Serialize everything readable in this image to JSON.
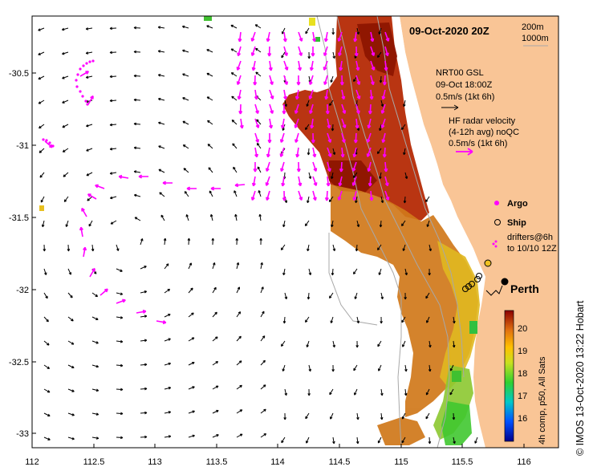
{
  "title": "09-Oct-2020 20Z",
  "isobaths": [
    "200m",
    "1000m"
  ],
  "model": {
    "line1": "NRT00 GSL",
    "line2": "09-Oct 18:00Z",
    "line3": "0.5m/s (1kt 6h)"
  },
  "radar": {
    "line1": "HF radar velocity",
    "line2": "(4-12h avg) noQC",
    "line3": "0.5m/s (1kt 6h)"
  },
  "legend": {
    "argo": "Argo",
    "ship": "Ship",
    "drifters_line1": "drifters@6h",
    "drifters_line2": "to 10/10 12Z"
  },
  "city": "Perth",
  "colorbar": {
    "ticks": [
      "20",
      "19",
      "18",
      "17",
      "16"
    ],
    "label": "4h comp, p50, All Sats"
  },
  "credit": "© IMOS 13-Oct-2020 13:22 Hobart",
  "axes": {
    "y_ticks": [
      "-30.5",
      "-31",
      "-31.5",
      "-32",
      "-32.5",
      "-33"
    ],
    "x_ticks": [
      "112",
      "112.5",
      "113",
      "113.5",
      "114",
      "114.5",
      "115",
      "115.5",
      "116"
    ]
  },
  "colors": {
    "land": "#f9c596",
    "radar_arrow": "#ff00ff",
    "model_arrow": "#000000",
    "sst_warm": "#b01800",
    "sst_mid": "#e49a18",
    "sst_cool": "#40cc30"
  }
}
